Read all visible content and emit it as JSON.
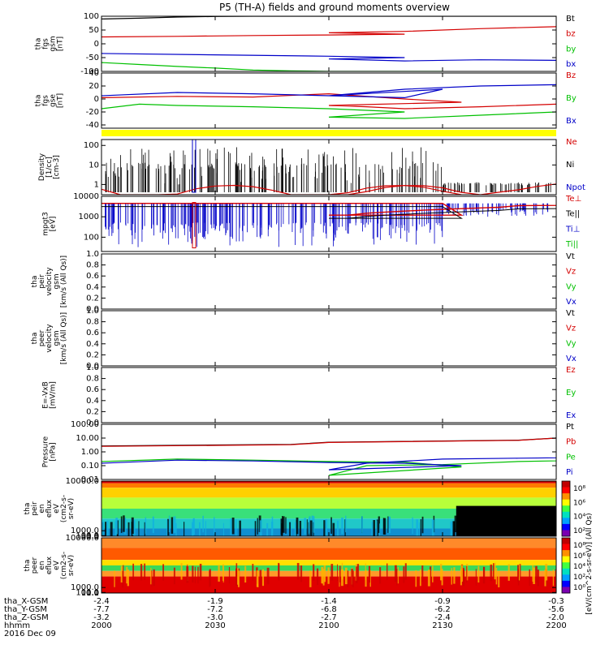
{
  "title": "P5 (TH-A) fields and ground moments overview",
  "colors": {
    "black": "#000000",
    "red": "#d40000",
    "green": "#00c000",
    "blue": "#0000c8",
    "yellow": "#ffff00"
  },
  "chart_data": [
    {
      "id": "fgs_gsm",
      "type": "line",
      "ylabel": [
        "tha",
        "fgs",
        "gsm",
        "[nT]"
      ],
      "ylim": [
        -100,
        100
      ],
      "yticks": [
        "100",
        "50",
        "0",
        "-50",
        "-100"
      ],
      "tickvals": [
        100,
        50,
        0,
        -50,
        -100
      ],
      "x": [
        2000,
        2200
      ],
      "legend": [
        "Bt",
        "bz",
        "by",
        "bx"
      ],
      "legend_colors": [
        "black",
        "red",
        "green",
        "blue"
      ],
      "series": [
        {
          "name": "Bt",
          "color": "black",
          "x": [
            2000,
            2010,
            2020,
            2030,
            2040,
            2050,
            2060,
            2070,
            2080,
            2090,
            2100,
            2150,
            2200
          ],
          "y": [
            90,
            93,
            97,
            99,
            100,
            100,
            100,
            100,
            100,
            100,
            100,
            100,
            100
          ]
        },
        {
          "name": "bz",
          "color": "red",
          "x": [
            2000,
            2020,
            2040,
            2060,
            2080,
            2100,
            2120,
            2140,
            2160,
            2180,
            2200
          ],
          "y": [
            25,
            27,
            30,
            32,
            35,
            40,
            45,
            55,
            62,
            70,
            85
          ]
        },
        {
          "name": "by",
          "color": "green",
          "x": [
            2000,
            2010,
            2020,
            2030,
            2040,
            2050,
            2060,
            2070,
            2080,
            2090,
            2100
          ],
          "y": [
            -68,
            -75,
            -82,
            -88,
            -95,
            -98,
            -100,
            -100,
            -100,
            -100,
            -100
          ]
        },
        {
          "name": "bx",
          "color": "blue",
          "x": [
            2000,
            2030,
            2060,
            2080,
            2100,
            2120,
            2140,
            2160,
            2180,
            2200
          ],
          "y": [
            -35,
            -40,
            -45,
            -50,
            -55,
            -62,
            -58,
            -60,
            -62,
            -60
          ]
        }
      ]
    },
    {
      "id": "fgs_gse",
      "type": "line",
      "ylabel": [
        "tha",
        "fgs",
        "gse",
        "[nT]"
      ],
      "ylim": [
        -45,
        40
      ],
      "yticks": [
        "40",
        "20",
        "0",
        "-20",
        "-40"
      ],
      "tickvals": [
        40,
        20,
        0,
        -20,
        -40
      ],
      "x": [
        2000,
        2200
      ],
      "legend": [
        "Bz",
        "By",
        "Bx"
      ],
      "legend_colors": [
        "red",
        "green",
        "blue"
      ],
      "series": [
        {
          "name": "Bz",
          "color": "red",
          "x": [
            2000,
            2020,
            2040,
            2060,
            2080,
            2095,
            2100,
            2110,
            2120,
            2140,
            2160,
            2180,
            2200
          ],
          "y": [
            2,
            4,
            3,
            8,
            0,
            -5,
            -10,
            -12,
            -15,
            -12,
            -8,
            -5,
            0
          ]
        },
        {
          "name": "By",
          "color": "green",
          "x": [
            2000,
            2010,
            2020,
            2040,
            2060,
            2080,
            2100,
            2120,
            2140,
            2160,
            2180,
            2200
          ],
          "y": [
            -15,
            -8,
            -10,
            -12,
            -15,
            -20,
            -28,
            -30,
            -25,
            -20,
            -18,
            -5
          ]
        },
        {
          "name": "Bx",
          "color": "blue",
          "x": [
            2000,
            2020,
            2040,
            2060,
            2080,
            2090,
            2100,
            2110,
            2120,
            2140,
            2160,
            2180,
            2200
          ],
          "y": [
            5,
            10,
            8,
            5,
            2,
            15,
            5,
            10,
            15,
            20,
            22,
            18,
            10
          ]
        }
      ]
    },
    {
      "id": "density",
      "type": "line",
      "log": true,
      "ylabel": [
        "Density",
        "[1/cc]",
        "[cm-3]"
      ],
      "ylim": [
        0.3,
        200
      ],
      "yticks": [
        "100",
        "10",
        "1"
      ],
      "tickvals": [
        100,
        10,
        1
      ],
      "legend": [
        "Ne",
        "Ni",
        "Npot"
      ],
      "legend_colors": [
        "red",
        "black",
        "blue"
      ]
    },
    {
      "id": "temperature",
      "type": "line",
      "log": true,
      "ylabel": [
        "mpgt3",
        "[eV]"
      ],
      "ylim": [
        20,
        10000
      ],
      "yticks": [
        "10000",
        "1000",
        "100"
      ],
      "tickvals": [
        10000,
        1000,
        100
      ],
      "legend": [
        "Te⊥",
        "Te||",
        "Ti⊥",
        "Ti||"
      ],
      "legend_colors": [
        "red",
        "black",
        "blue",
        "green"
      ]
    },
    {
      "id": "peir_velocity",
      "type": "line",
      "ylabel": [
        "tha",
        "peir",
        "velocity",
        "gsm",
        "[km/s (All Qs)]"
      ],
      "ylim": [
        0,
        1
      ],
      "yticks": [
        "1.0",
        "0.8",
        "0.6",
        "0.4",
        "0.2",
        "0.0"
      ],
      "tickvals": [
        1.0,
        0.8,
        0.6,
        0.4,
        0.2,
        0.0
      ],
      "legend": [
        "Vt",
        "Vz",
        "Vy",
        "Vx"
      ],
      "legend_colors": [
        "black",
        "red",
        "green",
        "blue"
      ]
    },
    {
      "id": "peer_velocity",
      "type": "line",
      "ylabel": [
        "tha",
        "peer",
        "velocity",
        "gsm",
        "[km/s (All Qs)]"
      ],
      "ylim": [
        0,
        1
      ],
      "yticks": [
        "1.0",
        "0.8",
        "0.6",
        "0.4",
        "0.2",
        "0.0"
      ],
      "tickvals": [
        1.0,
        0.8,
        0.6,
        0.4,
        0.2,
        0.0
      ],
      "legend": [
        "Vt",
        "Vz",
        "Vy",
        "Vx"
      ],
      "legend_colors": [
        "black",
        "red",
        "green",
        "blue"
      ]
    },
    {
      "id": "efield",
      "type": "line",
      "ylabel": [
        "E=-VxB",
        "[mV/m]"
      ],
      "ylim": [
        0,
        1
      ],
      "yticks": [
        "1.0",
        "0.8",
        "0.6",
        "0.4",
        "0.2",
        "0.0"
      ],
      "tickvals": [
        1.0,
        0.8,
        0.6,
        0.4,
        0.2,
        0.0
      ],
      "legend": [
        "Ez",
        "Ey",
        "Ex"
      ],
      "legend_colors": [
        "red",
        "green",
        "blue"
      ]
    },
    {
      "id": "pressure",
      "type": "line",
      "log": true,
      "ylabel": [
        "Pressure",
        "[nPa]"
      ],
      "ylim": [
        0.01,
        100
      ],
      "yticks": [
        "100.00",
        "10.00",
        "1.00",
        "0.10",
        "0.01"
      ],
      "tickvals": [
        100,
        10,
        1,
        0.1,
        0.01
      ],
      "legend": [
        "Pt",
        "Pb",
        "Pe",
        "Pi"
      ],
      "legend_colors": [
        "black",
        "red",
        "green",
        "blue"
      ],
      "series": [
        {
          "name": "Pt",
          "color": "black",
          "x": [
            2000,
            2050,
            2100,
            2150,
            2200
          ],
          "y": [
            2.7,
            3.5,
            5.0,
            7.0,
            10.0
          ]
        },
        {
          "name": "Pb",
          "color": "red",
          "x": [
            2000,
            2050,
            2100,
            2150,
            2200
          ],
          "y": [
            2.5,
            3.3,
            4.8,
            6.8,
            10.0
          ]
        },
        {
          "name": "Pe",
          "color": "green",
          "x": [
            2000,
            2020,
            2040,
            2060,
            2080,
            2095,
            2100,
            2110,
            2130,
            2150,
            2170,
            2200
          ],
          "y": [
            0.2,
            0.3,
            0.25,
            0.2,
            0.18,
            0.08,
            0.02,
            0.1,
            0.12,
            0.2,
            0.25,
            0.35
          ]
        },
        {
          "name": "Pi",
          "color": "blue",
          "x": [
            2000,
            2020,
            2040,
            2060,
            2080,
            2095,
            2100,
            2110,
            2130,
            2150,
            2170,
            2200
          ],
          "y": [
            0.15,
            0.25,
            0.22,
            0.17,
            0.15,
            0.1,
            0.05,
            0.15,
            0.3,
            0.35,
            0.4,
            0.45
          ]
        }
      ]
    },
    {
      "id": "peir_spec",
      "type": "heatmap",
      "ylabel": [
        "tha",
        "peir",
        "en",
        "eflux",
        "eV",
        "(cm2-s-",
        "sr-eV)"
      ],
      "ylim": [
        0.1,
        10000
      ],
      "yticks": [
        "10000.0",
        "1000.0",
        "100.0",
        "10.0",
        "1.0",
        "0.1"
      ],
      "tickvals": [
        10000,
        1000,
        100,
        10,
        1,
        0.1
      ],
      "colorbar_ticks": [
        "10⁸",
        "10⁶",
        "10⁴",
        "10²"
      ]
    },
    {
      "id": "peer_spec",
      "type": "heatmap",
      "ylabel": [
        "tha",
        "peer",
        "en",
        "eflux",
        "eV",
        "(cm2-s-",
        "sr-eV)"
      ],
      "ylim": [
        0.1,
        10000
      ],
      "yticks": [
        "10000.0",
        "1000.0",
        "100.0",
        "10.0",
        "1.0",
        "0.1"
      ],
      "tickvals": [
        10000,
        1000,
        100,
        10,
        1,
        0.1
      ],
      "colorbar_ticks": [
        "10⁸",
        "10⁶",
        "10⁴",
        "10²",
        "10⁰"
      ]
    }
  ],
  "colorbar_label": "[eV/(cm^2-s-sr-eV)] (All Qs)",
  "xaxis": {
    "row_labels": [
      "tha_X-GSM",
      "tha_Y-GSM",
      "tha_Z-GSM",
      "hhmm",
      "2016 Dec 09"
    ],
    "tick_hhmm": [
      2000,
      2030,
      2100,
      2130,
      2200
    ],
    "columns": [
      {
        "x": "-2.4",
        "y": "-7.7",
        "z": "-3.2",
        "hhmm": "2000"
      },
      {
        "x": "-1.9",
        "y": "-7.2",
        "z": "-3.0",
        "hhmm": "2030"
      },
      {
        "x": "-1.4",
        "y": "-6.8",
        "z": "-2.7",
        "hhmm": "2100"
      },
      {
        "x": "-0.9",
        "y": "-6.2",
        "z": "-2.4",
        "hhmm": "2130"
      },
      {
        "x": "-0.3",
        "y": "-5.6",
        "z": "-2.0",
        "hhmm": "2200"
      }
    ]
  }
}
